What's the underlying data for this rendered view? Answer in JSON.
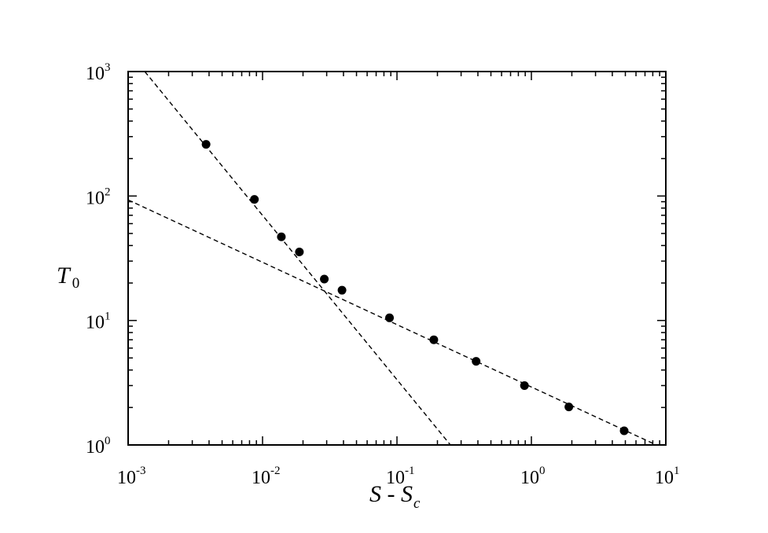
{
  "chart_data": {
    "type": "scatter",
    "xscale": "log",
    "yscale": "log",
    "xlim": [
      0.001,
      10
    ],
    "ylim": [
      1,
      1000
    ],
    "grid": false,
    "legend": "none",
    "xlabel": {
      "main": "S",
      "sep": " - ",
      "sub_main": "S",
      "subscript": "c"
    },
    "ylabel": {
      "main": "T",
      "subscript": "0"
    },
    "x_ticks": [
      {
        "base": "10",
        "exp": "-3",
        "value": 0.001
      },
      {
        "base": "10",
        "exp": "-2",
        "value": 0.01
      },
      {
        "base": "10",
        "exp": "-1",
        "value": 0.1
      },
      {
        "base": "10",
        "exp": "0",
        "value": 1
      },
      {
        "base": "10",
        "exp": "1",
        "value": 10
      }
    ],
    "y_ticks": [
      {
        "base": "10",
        "exp": "0",
        "value": 1
      },
      {
        "base": "10",
        "exp": "1",
        "value": 10
      },
      {
        "base": "10",
        "exp": "2",
        "value": 100
      },
      {
        "base": "10",
        "exp": "3",
        "value": 1000
      }
    ],
    "series": [
      {
        "kind": "points",
        "color": "#000000",
        "x": [
          0.0038,
          0.0087,
          0.0138,
          0.0188,
          0.0288,
          0.039,
          0.088,
          0.188,
          0.388,
          0.888,
          1.9,
          4.9
        ],
        "y": [
          260,
          94,
          47,
          35.5,
          21.5,
          17.5,
          10.5,
          7.0,
          4.7,
          3.0,
          2.02,
          1.3
        ]
      },
      {
        "kind": "dashed-fit",
        "color": "#000000",
        "x": [
          0.00133,
          0.25
        ],
        "y": [
          1000,
          1.0
        ]
      },
      {
        "kind": "dashed-fit",
        "color": "#000000",
        "x": [
          0.001,
          8.5
        ],
        "y": [
          93,
          1.0
        ]
      }
    ]
  }
}
